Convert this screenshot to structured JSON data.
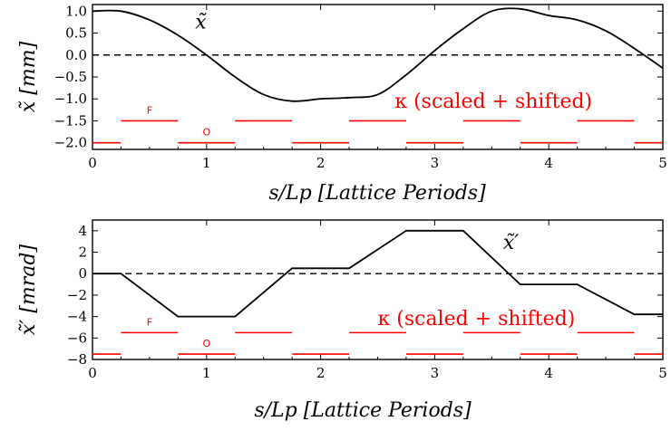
{
  "colors": {
    "curve": "#000000",
    "kappa": "#ff0000",
    "zero_line": "#000000"
  },
  "chart_data": [
    {
      "type": "line",
      "x": [
        0,
        0.25,
        0.5,
        0.75,
        1.0,
        1.25,
        1.5,
        1.75,
        2.0,
        2.25,
        2.5,
        2.75,
        3.0,
        3.25,
        3.5,
        3.75,
        4.0,
        4.25,
        4.5,
        4.75,
        5.0
      ],
      "series": [
        {
          "name": "x̃",
          "values": [
            1.0,
            1.0,
            0.8,
            0.45,
            0.0,
            -0.5,
            -0.9,
            -1.05,
            -1.0,
            -0.97,
            -0.9,
            -0.45,
            0.1,
            0.6,
            1.0,
            1.05,
            0.9,
            0.8,
            0.55,
            0.15,
            -0.3
          ]
        }
      ],
      "kappa": {
        "label": "κ (scaled + shifted)",
        "focus_label": "F",
        "defocus_label": "O",
        "focus_level": -1.5,
        "defocus_level": -2.0,
        "focus_segments": [
          [
            0.25,
            0.75
          ],
          [
            1.25,
            1.75
          ],
          [
            2.25,
            2.75
          ],
          [
            3.25,
            3.75
          ],
          [
            4.25,
            4.75
          ]
        ],
        "defocus_segments": [
          [
            0,
            0.25
          ],
          [
            0.75,
            1.25
          ],
          [
            1.75,
            2.25
          ],
          [
            2.75,
            3.25
          ],
          [
            3.75,
            4.25
          ],
          [
            4.75,
            5.0
          ]
        ],
        "focus_label_x": 0.5,
        "defocus_label_x": 1.0
      },
      "curve_label": "x̃",
      "curve_label_pos": [
        0.9,
        0.6
      ],
      "kappa_label_pos": [
        2.65,
        -1.2
      ],
      "xlabel": "s/Lp [Lattice Periods]",
      "ylabel": "x̃ [mm]",
      "xlim": [
        0,
        5
      ],
      "ylim": [
        -2.15,
        1.15
      ],
      "xticks": [
        "0",
        "1",
        "2",
        "3",
        "4",
        "5"
      ],
      "xtick_values": [
        0,
        1,
        2,
        3,
        4,
        5
      ],
      "yticks": [
        "1.0",
        "0.5",
        "0.0",
        "−0.5",
        "−1.0",
        "−1.5",
        "−2.0"
      ],
      "ytick_values": [
        1.0,
        0.5,
        0.0,
        -0.5,
        -1.0,
        -1.5,
        -2.0
      ],
      "zero_line": true,
      "grid": false
    },
    {
      "type": "line",
      "x": [
        0,
        0.25,
        0.75,
        1.25,
        1.75,
        2.25,
        2.75,
        3.25,
        3.75,
        4.25,
        4.75,
        5.0
      ],
      "series": [
        {
          "name": "x̃′",
          "values": [
            0,
            0,
            -4,
            -4,
            0.5,
            0.5,
            4,
            4,
            -1,
            -1,
            -3.8,
            -3.8
          ]
        }
      ],
      "kappa": {
        "label": "κ (scaled + shifted)",
        "focus_label": "F",
        "defocus_label": "O",
        "focus_level": -5.5,
        "defocus_level": -7.5,
        "focus_segments": [
          [
            0.25,
            0.75
          ],
          [
            1.25,
            1.75
          ],
          [
            2.25,
            2.75
          ],
          [
            3.25,
            3.75
          ],
          [
            4.25,
            4.75
          ]
        ],
        "defocus_segments": [
          [
            0,
            0.25
          ],
          [
            0.75,
            1.25
          ],
          [
            1.75,
            2.25
          ],
          [
            2.75,
            3.25
          ],
          [
            3.75,
            4.25
          ],
          [
            4.75,
            5.0
          ]
        ],
        "focus_label_x": 0.5,
        "defocus_label_x": 1.0
      },
      "curve_label": "x̃′",
      "curve_label_pos": [
        3.6,
        2.3
      ],
      "kappa_label_pos": [
        2.5,
        -4.8
      ],
      "xlabel": "s/Lp [Lattice Periods]",
      "ylabel": "x̃′ [mrad]",
      "xlim": [
        0,
        5
      ],
      "ylim": [
        -8,
        5
      ],
      "xticks": [
        "0",
        "1",
        "2",
        "3",
        "4",
        "5"
      ],
      "xtick_values": [
        0,
        1,
        2,
        3,
        4,
        5
      ],
      "yticks": [
        "4",
        "2",
        "0",
        "−2",
        "−4",
        "−6",
        "−8"
      ],
      "ytick_values": [
        4,
        2,
        0,
        -2,
        -4,
        -6,
        -8
      ],
      "zero_line": true,
      "grid": false
    }
  ]
}
